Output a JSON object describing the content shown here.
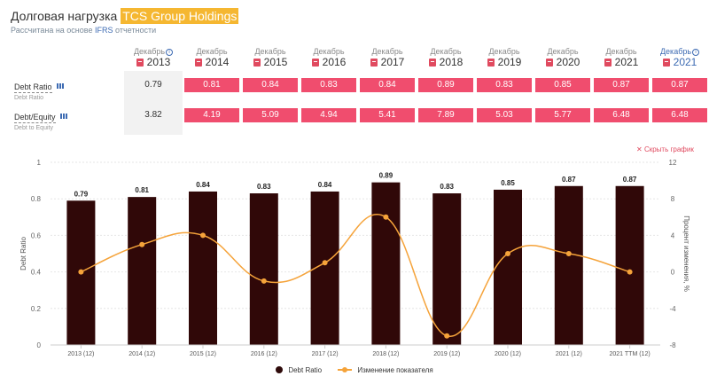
{
  "header": {
    "title_prefix": "Долговая нагрузка",
    "company": "TCS Group Holdings",
    "subtitle_prefix": "Рассчитана на основе",
    "standard": "IFRS",
    "subtitle_suffix": "отчетности"
  },
  "years": [
    {
      "month": "Декабрь",
      "year": "2013",
      "info": true,
      "highlight": false
    },
    {
      "month": "Декабрь",
      "year": "2014",
      "info": false,
      "highlight": false
    },
    {
      "month": "Декабрь",
      "year": "2015",
      "info": false,
      "highlight": false
    },
    {
      "month": "Декабрь",
      "year": "2016",
      "info": false,
      "highlight": false
    },
    {
      "month": "Декабрь",
      "year": "2017",
      "info": false,
      "highlight": false
    },
    {
      "month": "Декабрь",
      "year": "2018",
      "info": false,
      "highlight": false
    },
    {
      "month": "Декабрь",
      "year": "2019",
      "info": false,
      "highlight": false
    },
    {
      "month": "Декабрь",
      "year": "2020",
      "info": false,
      "highlight": false
    },
    {
      "month": "Декабрь",
      "year": "2021",
      "info": false,
      "highlight": false
    },
    {
      "month": "Декабрь",
      "year": "2021",
      "info": true,
      "highlight": true
    }
  ],
  "rows": [
    {
      "label": "Debt Ratio",
      "sublabel": "Debt Ratio",
      "values": [
        "0.79",
        "0.81",
        "0.84",
        "0.83",
        "0.84",
        "0.89",
        "0.83",
        "0.85",
        "0.87",
        "0.87"
      ]
    },
    {
      "label": "Debt/Equity",
      "sublabel": "Debt to Equity",
      "values": [
        "3.82",
        "4.19",
        "5.09",
        "4.94",
        "5.41",
        "7.89",
        "5.03",
        "5.77",
        "6.48",
        "6.48"
      ]
    }
  ],
  "hide_chart_label": "Скрыть график",
  "chart_data": {
    "type": "bar",
    "categories": [
      "2013 (12)",
      "2014 (12)",
      "2015 (12)",
      "2016 (12)",
      "2017 (12)",
      "2018 (12)",
      "2019 (12)",
      "2020 (12)",
      "2021 (12)",
      "2021 TTM (12)"
    ],
    "series": [
      {
        "name": "Debt Ratio",
        "type": "bar",
        "axis": "left",
        "color": "#300808",
        "values": [
          0.79,
          0.81,
          0.84,
          0.83,
          0.84,
          0.89,
          0.83,
          0.85,
          0.87,
          0.87
        ],
        "labels": [
          "0.79",
          "0.81",
          "0.84",
          "0.83",
          "0.84",
          "0.89",
          "0.83",
          "0.85",
          "0.87",
          "0.87"
        ]
      },
      {
        "name": "Изменение показателя",
        "type": "line",
        "axis": "right",
        "color": "#f5a33a",
        "values": [
          0,
          3,
          4,
          -1,
          1,
          6,
          -7,
          2,
          2,
          0
        ]
      }
    ],
    "ylabel": "Debt Ratio",
    "y2label": "Процент изменения, %",
    "ylim": [
      0,
      1
    ],
    "y2lim": [
      -8,
      12
    ],
    "yticks": [
      "0",
      "0.2",
      "0.4",
      "0.6",
      "0.8",
      "1"
    ],
    "y2ticks": [
      "-8",
      "-4",
      "0",
      "4",
      "8",
      "12"
    ],
    "grid": true,
    "legend": "bottom"
  }
}
